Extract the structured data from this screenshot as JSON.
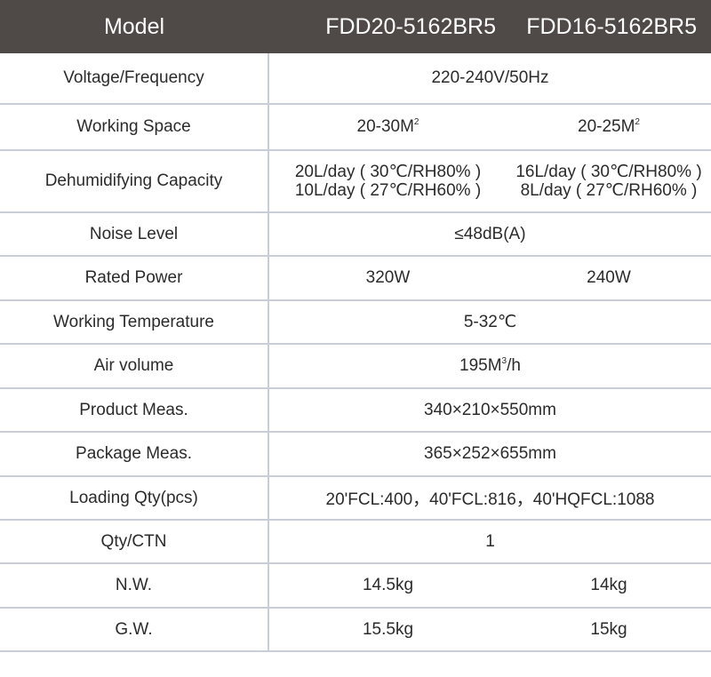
{
  "header": {
    "model_label": "Model",
    "model_a": "FDD20-5162BR5",
    "model_b": "FDD16-5162BR5"
  },
  "rows": {
    "voltage": {
      "label": "Voltage/Frequency",
      "value": "220-240V/50Hz"
    },
    "working_space": {
      "label": "Working Space",
      "a": "20-30M",
      "b": "20-25M",
      "sup": "2"
    },
    "capacity": {
      "label": "Dehumidifying Capacity",
      "a1": "20L/day ( 30℃/RH80% )",
      "a2": "10L/day ( 27℃/RH60% )",
      "b1": "16L/day ( 30℃/RH80% )",
      "b2": "8L/day ( 27℃/RH60% )"
    },
    "noise": {
      "label": "Noise Level",
      "value": "≤48dB(A)"
    },
    "power": {
      "label": "Rated Power",
      "a": "320W",
      "b": "240W"
    },
    "temperature": {
      "label": "Working Temperature",
      "value": "5-32℃"
    },
    "air_volume": {
      "label": "Air volume",
      "value_pre": "195M",
      "sup": "3",
      "value_post": "/h"
    },
    "product_meas": {
      "label": "Product Meas.",
      "value": "340×210×550mm"
    },
    "package_meas": {
      "label": "Package Meas.",
      "value": "365×252×655mm"
    },
    "loading": {
      "label": "Loading Qty(pcs)",
      "value": "20'FCL:400，40'FCL:816，40'HQFCL:1088"
    },
    "qty_ctn": {
      "label": "Qty/CTN",
      "value": "1"
    },
    "nw": {
      "label": "N.W.",
      "a": "14.5kg",
      "b": "14kg"
    },
    "gw": {
      "label": "G.W.",
      "a": "15.5kg",
      "b": "15kg"
    }
  }
}
